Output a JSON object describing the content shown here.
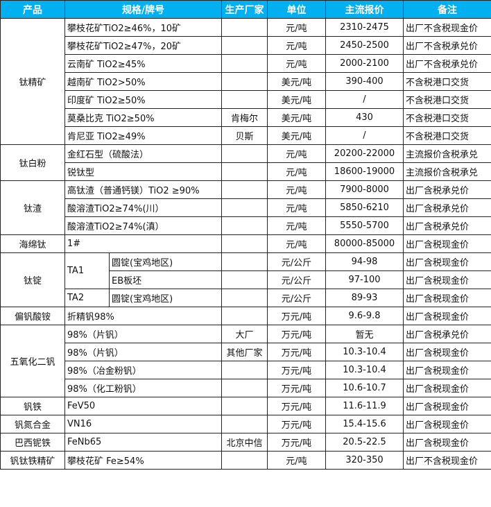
{
  "colors": {
    "header_bg": "#00b0f0"
  },
  "headers": [
    "产品",
    "规格/牌号",
    "生产厂家",
    "单位",
    "主流报价",
    "备注"
  ],
  "rows": [
    {
      "product": "钛精矿",
      "spec": "攀枝花矿TiO2≥46%，10矿",
      "maker": "",
      "unit": "元/吨",
      "price": "2310-2475",
      "note": "出厂不含税现金价"
    },
    {
      "spec": "攀枝花矿TiO2≥47%，20矿",
      "maker": "",
      "unit": "元/吨",
      "price": "2450-2500",
      "note": "出厂不含税承兑价"
    },
    {
      "spec": "云南矿 TiO2≥45%",
      "maker": "",
      "unit": "元/吨",
      "price": "2000-2100",
      "note": "出厂不含税承兑价"
    },
    {
      "spec": "越南矿 TiO2>50%",
      "maker": "",
      "unit": "美元/吨",
      "price": "390-400",
      "note": "不含税港口交货"
    },
    {
      "spec": "印度矿 TiO2≥50%",
      "maker": "",
      "unit": "美元/吨",
      "price": "/",
      "note": "不含税港口交货"
    },
    {
      "spec": "莫桑比克 TiO2≥50%",
      "maker": "肯梅尔",
      "unit": "美元/吨",
      "price": "430",
      "note": "不含税港口交货"
    },
    {
      "spec": "肯尼亚 TiO2≥49%",
      "maker": "贝斯",
      "unit": "美元/吨",
      "price": "/",
      "note": "不含税港口交货"
    },
    {
      "product": "钛白粉",
      "spec": "金红石型（硫酸法）",
      "maker": "",
      "unit": "元/吨",
      "price": "20200-22000",
      "note": "主流报价含税承兑"
    },
    {
      "spec": "锐钛型",
      "maker": "",
      "unit": "元/吨",
      "price": "18600-19000",
      "note": "主流报价含税承兑"
    },
    {
      "product": "钛渣",
      "spec": "高钛渣（普通钙镁）TiO2 ≥90%",
      "maker": "",
      "unit": "元/吨",
      "price": "7900-8000",
      "note": "出厂含税承兑价"
    },
    {
      "spec": "酸溶渣TiO2≥74%(川）",
      "maker": "",
      "unit": "元/吨",
      "price": "5850-6210",
      "note": "出厂含税承兑价"
    },
    {
      "spec": "酸溶渣TiO2≥74%(滇）",
      "maker": "",
      "unit": "元/吨",
      "price": "5550-5700",
      "note": "出厂含税承兑价"
    },
    {
      "product": "海绵钛",
      "spec": "1#",
      "maker": "",
      "unit": "元/吨",
      "price": "80000-85000",
      "note": "出厂含税现金价"
    },
    {
      "product": "钛锭",
      "grade": "TA1",
      "spec": "圆锭(宝鸡地区)",
      "maker": "",
      "unit": "元/公斤",
      "price": "94-98",
      "note": "出厂含税现金价"
    },
    {
      "spec": "EB板坯",
      "maker": "",
      "unit": "元/公斤",
      "price": "97-100",
      "note": "出厂含税现金价"
    },
    {
      "grade": "TA2",
      "spec": "圆锭(宝鸡地区)",
      "maker": "",
      "unit": "元/公斤",
      "price": "89-93",
      "note": "出厂含税现金价"
    },
    {
      "product": "偏钒酸铵",
      "spec": "折精钒98%",
      "maker": "",
      "unit": "万元/吨",
      "price": "9.6-9.8",
      "note": "出厂含税现金价"
    },
    {
      "product": "五氧化二钒",
      "spec": "98%（片钒）",
      "maker": "大厂",
      "unit": "万元/吨",
      "price": "暂无",
      "note": "出厂含税承兑价"
    },
    {
      "spec": "98%（片钒）",
      "maker": "其他厂家",
      "unit": "万元/吨",
      "price": "10.3-10.4",
      "note": "出厂含税现金价"
    },
    {
      "spec": "98%（冶金粉钒）",
      "maker": "",
      "unit": "万元/吨",
      "price": "10.3-10.4",
      "note": "出厂含税现金价"
    },
    {
      "spec": "98%（化工粉钒）",
      "maker": "",
      "unit": "万元/吨",
      "price": "10.6-10.7",
      "note": "出厂含税现金价"
    },
    {
      "product": "钒铁",
      "spec": "FeV50",
      "maker": "",
      "unit": "万元/吨",
      "price": "11.6-11.9",
      "note": "出厂含税现金价"
    },
    {
      "product": "钒氮合金",
      "spec": "VN16",
      "maker": "",
      "unit": "万元/吨",
      "price": "15.4-15.6",
      "note": "出厂含税现金价"
    },
    {
      "product": "巴西铌铁",
      "spec": "FeNb65",
      "maker": "北京中信",
      "unit": "万元/吨",
      "price": "20.5-22.5",
      "note": "出厂含税现金价"
    },
    {
      "product": "钒钛铁精矿",
      "spec": "攀枝花矿 Fe≥54%",
      "maker": "",
      "unit": "元/吨",
      "price": "320-350",
      "note": "出厂不含税现金价"
    }
  ]
}
